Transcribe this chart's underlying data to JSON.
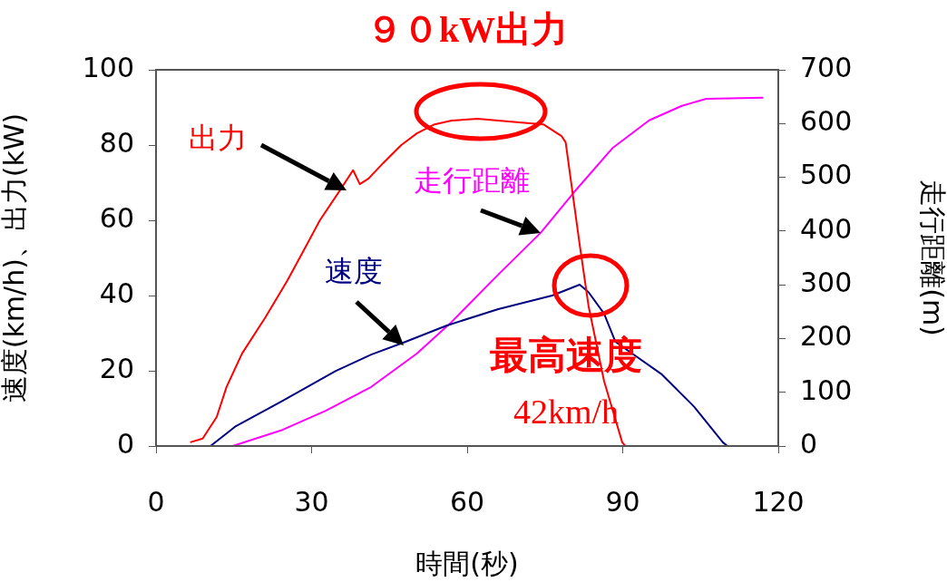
{
  "chart_data": {
    "type": "line",
    "title": "９０kW出力",
    "xlabel": "時間(秒)",
    "ylabel": "速度(km/h)、出力(kW)",
    "y2label": "走行距離(m)",
    "xlim": [
      0,
      120
    ],
    "xticks": [
      0,
      30,
      60,
      90,
      120
    ],
    "ylim": [
      0,
      100
    ],
    "yticks": [
      0,
      20,
      40,
      60,
      80,
      100
    ],
    "y2lim": [
      0,
      700
    ],
    "y2ticks": [
      0,
      100,
      200,
      300,
      400,
      500,
      600,
      700
    ],
    "grid": false,
    "legend": false,
    "marker": "none",
    "line_style": "solid",
    "series": [
      {
        "name": "出力",
        "color": "#ff0000",
        "x": [
          6.6,
          9,
          11.7,
          13.6,
          16.6,
          21.1,
          25.3,
          28.1,
          31.6,
          35.1,
          38,
          39.3,
          41,
          43.8,
          47.3,
          50.3,
          53.7,
          57,
          62,
          66,
          70,
          74.7,
          78.2,
          79,
          81.7,
          83.4,
          86.4,
          89.9,
          90.5
        ],
        "values": [
          1,
          2,
          7.7,
          15.7,
          24.6,
          34.2,
          43.9,
          51,
          60,
          67.2,
          73.3,
          69.6,
          71.1,
          75.2,
          80,
          83.1,
          85.5,
          86.5,
          87,
          86.5,
          86,
          85.5,
          82.4,
          80.7,
          53.5,
          37.3,
          17.3,
          1,
          0
        ]
      },
      {
        "name": "速度",
        "color": "#000080",
        "x": [
          10.5,
          15.4,
          24.1,
          34.6,
          41.5,
          47.9,
          56,
          66,
          76.4,
          81.7,
          83.4,
          86.4,
          88.6,
          97.4,
          103.8,
          109.3,
          110.2
        ],
        "values": [
          0,
          5.3,
          11.8,
          19.9,
          24.3,
          27.6,
          32,
          36.4,
          40,
          42.9,
          40.9,
          35.2,
          27.7,
          19.2,
          10.4,
          1,
          0
        ]
      },
      {
        "name": "走行距離",
        "color": "#ff00ff",
        "axis": "y2",
        "x": [
          14.8,
          24.1,
          32.8,
          41.5,
          50.3,
          56.7,
          66,
          74.2,
          80.5,
          88.1,
          95.1,
          101.4,
          106.1,
          117.1
        ],
        "values": [
          0,
          29,
          66,
          110,
          172,
          228,
          319,
          397,
          471,
          555,
          606,
          633,
          646,
          648
        ]
      }
    ],
    "annotations": [
      "最高速度",
      "42km/h"
    ]
  }
}
